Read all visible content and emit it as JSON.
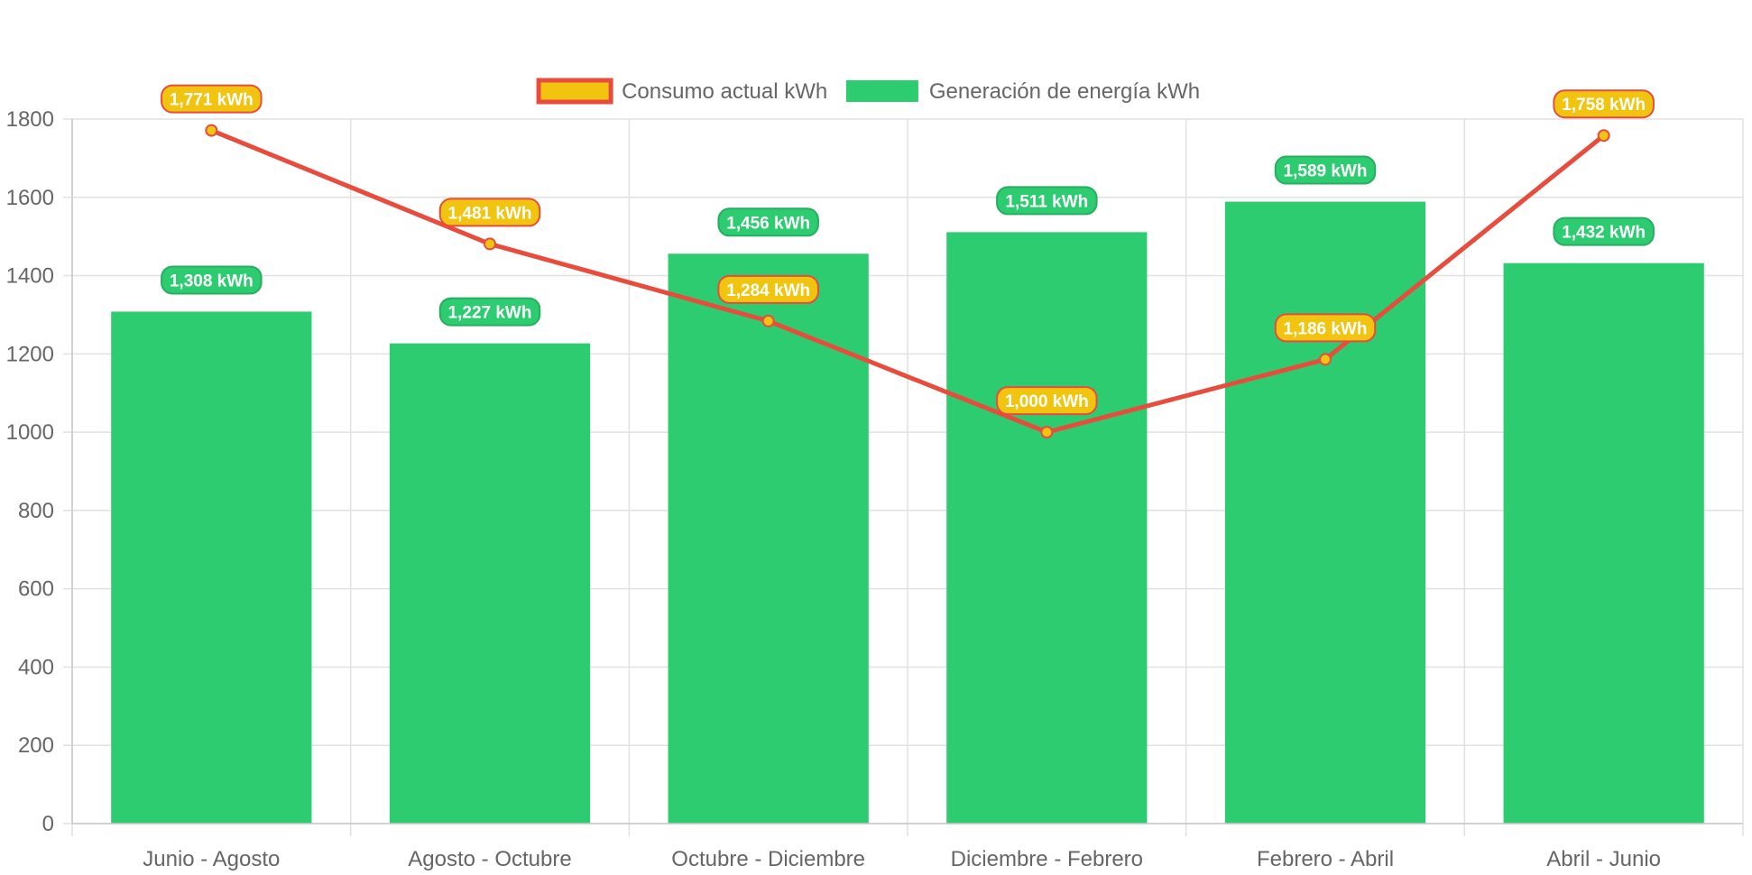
{
  "chart_data": {
    "type": "bar",
    "categories": [
      "Junio - Agosto",
      "Agosto - Octubre",
      "Octubre - Diciembre",
      "Diciembre - Febrero",
      "Febrero - Abril",
      "Abril - Junio"
    ],
    "series": [
      {
        "name": "Consumo actual kWh",
        "type": "line",
        "values": [
          1771,
          1481,
          1284,
          1000,
          1186,
          1758
        ],
        "labels": [
          "1,771 kWh",
          "1,481 kWh",
          "1,284 kWh",
          "1,000 kWh",
          "1,186 kWh",
          "1,758 kWh"
        ],
        "color": "#e74c3c",
        "fill_color": "#f1c40f"
      },
      {
        "name": "Generación de energía kWh",
        "type": "bar",
        "values": [
          1308,
          1227,
          1456,
          1511,
          1589,
          1432
        ],
        "labels": [
          "1,308 kWh",
          "1,227 kWh",
          "1,456 kWh",
          "1,511 kWh",
          "1,589 kWh",
          "1,432 kWh"
        ],
        "color": "#2ecc71"
      }
    ],
    "ylim": [
      0,
      1800
    ],
    "yticks": [
      "0",
      "200",
      "400",
      "600",
      "800",
      "1000",
      "1200",
      "1400",
      "1600",
      "1800"
    ],
    "grid": true,
    "legend": "top-center",
    "colors": {
      "grid": "#e1e1e1",
      "axis": "#c8c8c8",
      "tick_text": "#666666",
      "line_label_border": "#e74c3c",
      "line_label_fill": "#f1c40f",
      "bar_label_border": "#27ae60",
      "bar_label_fill": "#2ecc71"
    }
  }
}
